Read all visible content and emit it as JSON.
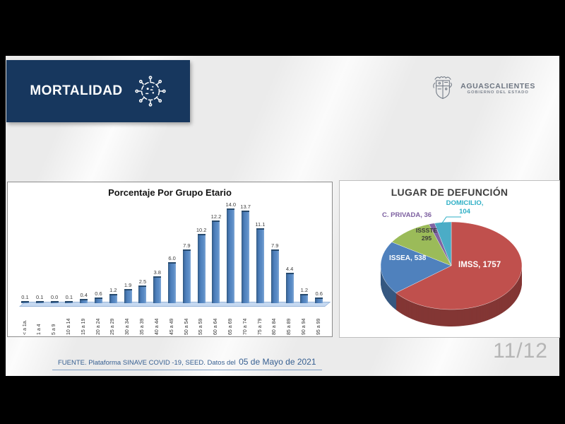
{
  "slide": {
    "banner_title": "MORTALIDAD",
    "logo": {
      "name": "AGUASCALIENTES",
      "subtitle": "GOBIERNO DEL ESTADO"
    },
    "source_note_prefix": "FUENTE. Plataforma SINAVE COVID -19, SEED. Datos del",
    "source_note_date": "05 de Mayo de 2021",
    "page_indicator": "11/12"
  },
  "colors": {
    "banner_bg": "#17375e",
    "bar_fill": "#4f81bd",
    "footer_text": "#365f91"
  },
  "chart_data": [
    {
      "type": "bar",
      "title": "Porcentaje Por Grupo Etario",
      "categories": [
        "< a 1a.",
        "1 a 4",
        "5 a 9",
        "10 a 14",
        "15 a 19",
        "20 a 24",
        "25 a 29",
        "30 a 34",
        "35 a 39",
        "40 a 44",
        "45 a 49",
        "50 a 54",
        "55 a 59",
        "60 a 64",
        "65 a 69",
        "70 a 74",
        "75 a 79",
        "80 a 84",
        "85 a 89",
        "90 a 94",
        "95 a 99"
      ],
      "values": [
        0.1,
        0.1,
        0.0,
        0.1,
        0.4,
        0.6,
        1.2,
        1.9,
        2.5,
        3.8,
        6.0,
        7.9,
        10.2,
        12.2,
        14.0,
        13.7,
        11.1,
        7.9,
        4.4,
        1.2,
        0.6
      ],
      "ylabel": "",
      "xlabel": "",
      "ylim": [
        0,
        14.5
      ],
      "grid": false,
      "data_labels": true,
      "bar_color": "#4f81bd"
    },
    {
      "type": "pie",
      "title": "LUGAR DE DEFUNCIÓN",
      "style": "3d",
      "slices": [
        {
          "label": "IMSS",
          "value": 1757,
          "color": "#c0504d",
          "label_text": "IMSS, 1757",
          "label_color": "#ffffff"
        },
        {
          "label": "ISSEA",
          "value": 538,
          "color": "#4f81bd",
          "label_text": "ISSEA, 538",
          "label_color": "#ffffff"
        },
        {
          "label": "ISSSTE",
          "value": 295,
          "color": "#9bbb59",
          "label_text": "ISSSTE\n295",
          "label_color": "#3a3a3a"
        },
        {
          "label": "C. PRIVADA",
          "value": 36,
          "color": "#8064a2",
          "label_text": "C. PRIVADA, 36",
          "label_color": "#7d60a0"
        },
        {
          "label": "DOMICILIO",
          "value": 104,
          "color": "#4bacc6",
          "label_text": "DOMICILIO,\n104",
          "label_color": "#2eafc5"
        }
      ]
    }
  ]
}
